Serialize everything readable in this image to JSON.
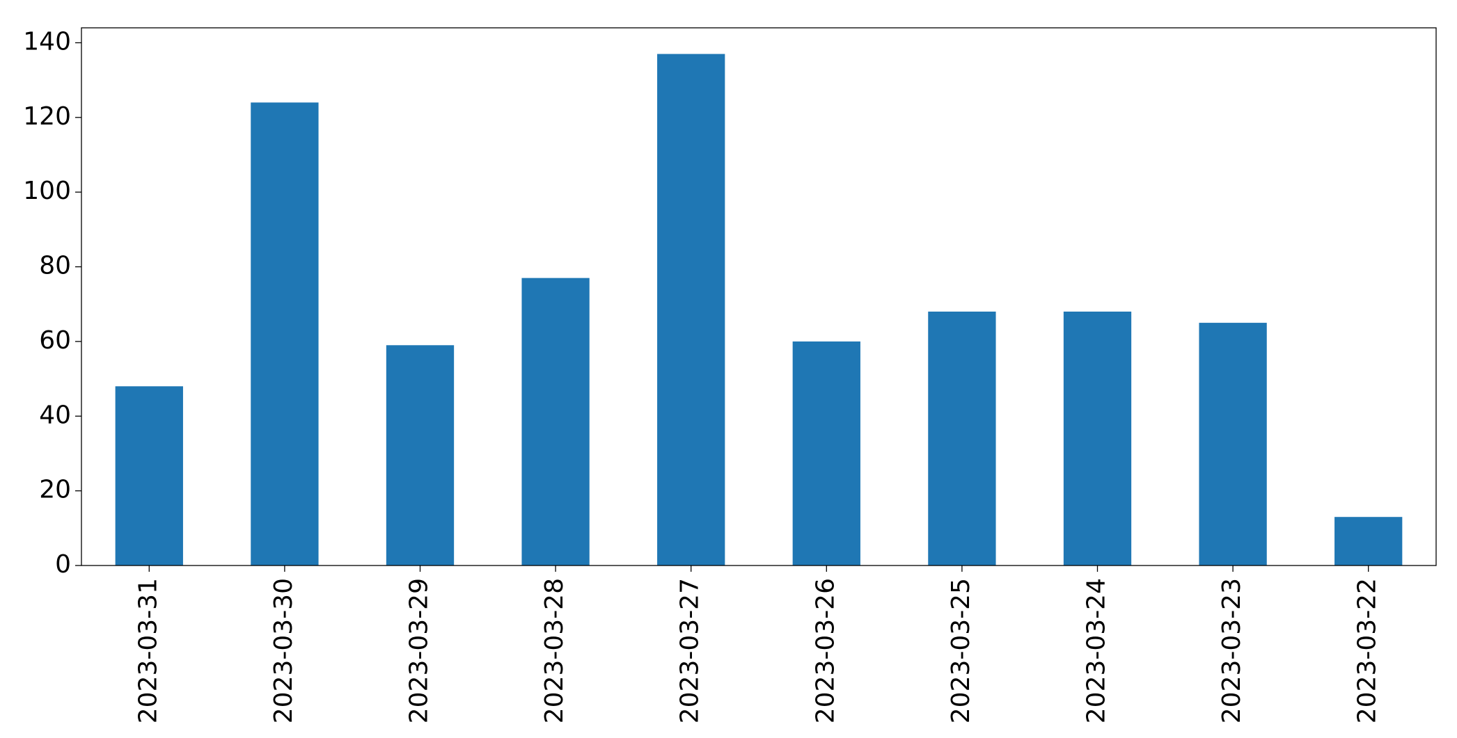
{
  "chart_data": {
    "type": "bar",
    "categories": [
      "2023-03-31",
      "2023-03-30",
      "2023-03-29",
      "2023-03-28",
      "2023-03-27",
      "2023-03-26",
      "2023-03-25",
      "2023-03-24",
      "2023-03-23",
      "2023-03-22"
    ],
    "values": [
      48,
      124,
      59,
      77,
      137,
      60,
      68,
      68,
      65,
      13
    ],
    "color": "#1f77b4",
    "ylim": [
      0,
      144
    ],
    "yticks": [
      0,
      20,
      40,
      60,
      80,
      100,
      120,
      140
    ],
    "grid": false
  }
}
